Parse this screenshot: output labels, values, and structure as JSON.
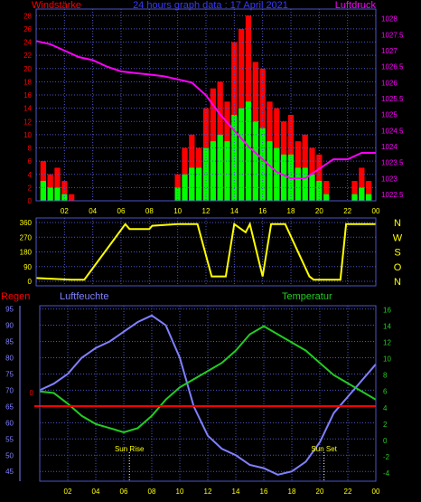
{
  "colors": {
    "background": "#000000",
    "frame": "#4c54c8",
    "windspeed_gust": "#ff0000",
    "windspeed_avg": "#00ff00",
    "pressure": "#ff00ff",
    "direction": "#ffff00",
    "rain": "#ff0000",
    "humidity": "#8080ff",
    "temperature": "#22cc22",
    "text_yellow": "#ffff00"
  },
  "chart_data": [
    {
      "type": "bar",
      "title": "24 hours graph data : 17 April 2021",
      "left_label": "Windstärke",
      "right_label": "Luftdruck",
      "x_ticks": [
        "02",
        "04",
        "06",
        "08",
        "10",
        "12",
        "14",
        "16",
        "18",
        "20",
        "22",
        "00"
      ],
      "y_left_ticks": [
        "0",
        "2",
        "4",
        "6",
        "8",
        "10",
        "12",
        "14",
        "16",
        "18",
        "20",
        "22",
        "24",
        "26",
        "28"
      ],
      "y_right_ticks": [
        "1022.5",
        "1023",
        "1023.5",
        "1024",
        "1024.5",
        "1025",
        "1025.5",
        "1026",
        "1026.5",
        "1027",
        "1027.5",
        "1028"
      ],
      "ylim_left": [
        0,
        29
      ],
      "ylim_right": [
        1022.3,
        1028.3
      ],
      "x_range_hours": [
        0,
        24
      ],
      "series": [
        {
          "name": "Windstärke",
          "x": [
            0.5,
            1,
            1.5,
            2,
            2.5,
            3,
            3.5,
            4,
            5,
            6,
            7,
            8,
            9,
            10,
            10.5,
            11,
            11.5,
            12,
            12.5,
            13,
            13.5,
            14,
            14.5,
            15,
            15.5,
            16,
            16.5,
            17,
            17.5,
            18,
            18.5,
            19,
            19.5,
            20,
            20.5,
            21,
            22,
            22.5,
            23,
            23.5
          ],
          "gust": [
            6,
            4,
            5,
            3,
            1,
            0,
            0,
            0,
            0,
            0,
            0,
            0,
            0,
            4,
            8,
            10,
            8,
            14,
            17,
            18,
            15,
            24,
            26,
            28,
            21,
            20,
            15,
            14,
            12,
            13,
            9,
            10,
            8,
            7,
            3,
            0,
            0,
            3,
            5,
            3
          ],
          "avg": [
            3,
            2,
            2,
            1,
            0,
            0,
            0,
            0,
            0,
            0,
            0,
            0,
            0,
            2,
            4,
            5,
            5,
            8,
            9,
            10,
            9,
            13,
            14,
            15,
            12,
            11,
            9,
            8,
            7,
            7,
            5,
            5,
            4,
            3,
            1,
            0,
            0,
            1,
            2,
            1
          ]
        },
        {
          "name": "Luftdruck",
          "x": [
            0,
            1,
            2,
            3,
            4,
            5,
            6,
            7,
            8,
            9,
            10,
            11,
            12,
            13,
            14,
            15,
            16,
            17,
            18,
            19,
            20,
            21,
            22,
            23,
            24
          ],
          "values": [
            1027.3,
            1027.2,
            1027.0,
            1026.8,
            1026.7,
            1026.5,
            1026.35,
            1026.3,
            1026.25,
            1026.2,
            1026.1,
            1026.0,
            1025.6,
            1025.0,
            1024.5,
            1024.0,
            1023.6,
            1023.2,
            1023.0,
            1023.0,
            1023.3,
            1023.6,
            1023.6,
            1023.8,
            1023.8
          ]
        }
      ]
    },
    {
      "type": "line",
      "title": "",
      "right_labels": [
        "N",
        "W",
        "S",
        "O",
        "N"
      ],
      "y_left_ticks": [
        "0",
        "90",
        "180",
        "270",
        "360"
      ],
      "ylim": [
        0,
        360
      ],
      "x_range_hours": [
        0,
        24
      ],
      "series": [
        {
          "name": "direction",
          "x": [
            0,
            2.5,
            3.4,
            6.3,
            6.6,
            8,
            8.2,
            10,
            11.4,
            12.4,
            13.4,
            14,
            14.8,
            15.1,
            16,
            16.6,
            17.6,
            19.3,
            19.6,
            21.5,
            21.9,
            24
          ],
          "values": [
            20,
            10,
            10,
            350,
            320,
            320,
            340,
            350,
            350,
            30,
            30,
            350,
            300,
            350,
            30,
            350,
            350,
            30,
            10,
            10,
            350,
            350
          ]
        }
      ]
    },
    {
      "type": "line",
      "title": "",
      "left_label": "Regen",
      "center_label": "Luftfeuchte",
      "right_label": "Temperatur",
      "x_ticks": [
        "02",
        "04",
        "06",
        "08",
        "10",
        "12",
        "14",
        "16",
        "18",
        "20",
        "22",
        "00"
      ],
      "y_left_ticks": [
        "45",
        "50",
        "55",
        "60",
        "65",
        "70",
        "75",
        "80",
        "85",
        "90",
        "95"
      ],
      "y_right_ticks": [
        "-4",
        "-2",
        "0",
        "2",
        "4",
        "6",
        "8",
        "10",
        "12",
        "14",
        "16"
      ],
      "rain_zero_label": "0",
      "ylim_left": [
        42,
        96
      ],
      "ylim_right": [
        -5,
        16.5
      ],
      "x_range_hours": [
        0,
        24
      ],
      "annotations": [
        {
          "text": "Sun Rise",
          "x": 6.4
        },
        {
          "text": "Sun Set",
          "x": 20.3
        }
      ],
      "series": [
        {
          "name": "Luftfeuchte",
          "x": [
            0,
            1,
            2,
            3,
            4,
            5,
            6,
            7,
            8,
            9,
            10,
            11,
            12,
            13,
            14,
            15,
            16,
            17,
            18,
            19,
            20,
            21,
            22,
            23,
            24
          ],
          "values": [
            70,
            72,
            75,
            80,
            83,
            85,
            88,
            91,
            93,
            90,
            80,
            65,
            56,
            52,
            50,
            47,
            46,
            44,
            45,
            48,
            54,
            63,
            68,
            73,
            78
          ]
        },
        {
          "name": "Temperatur",
          "x": [
            0,
            1,
            2,
            3,
            4,
            5,
            6,
            7,
            8,
            9,
            10,
            11,
            12,
            13,
            14,
            15,
            16,
            17,
            18,
            19,
            20,
            21,
            22,
            23,
            24
          ],
          "values": [
            6,
            5.8,
            4.5,
            3,
            2,
            1.5,
            1,
            1.5,
            3,
            5,
            6.5,
            7.5,
            8.5,
            9.5,
            11,
            13,
            14,
            13,
            12,
            11,
            9.5,
            8,
            7,
            6,
            5
          ]
        },
        {
          "name": "Regen",
          "x": [
            0,
            24
          ],
          "values": [
            0,
            0
          ]
        }
      ]
    }
  ]
}
